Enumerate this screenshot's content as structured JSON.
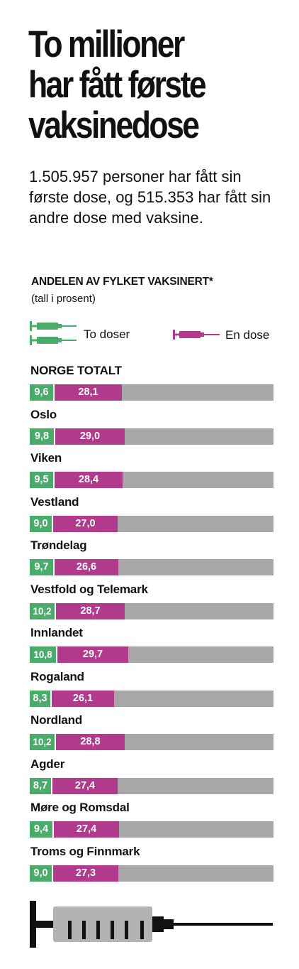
{
  "title_lines": [
    "To millioner",
    "har fått første",
    "vaksinedose"
  ],
  "subtitle": "1.505.957 personer har fått sin første dose, og 515.353 har fått sin andre dose med vaksine.",
  "section_title": "ANDELEN AV FYLKET VAKSINERT*",
  "section_subtitle": "(tall  i prosent)",
  "legend": {
    "two_doses": "To doser",
    "one_dose": "En dose"
  },
  "colors": {
    "two_doses": "#4aab6a",
    "one_dose": "#b23a8c",
    "remainder": "#a7a7a7"
  },
  "chart_data": {
    "type": "bar",
    "stacked": true,
    "orientation": "horizontal",
    "xlim": [
      0,
      100
    ],
    "categories": [
      "NORGE TOTALT",
      "Oslo",
      "Viken",
      "Vestland",
      "Trøndelag",
      "Vestfold og Telemark",
      "Innlandet",
      "Rogaland",
      "Nordland",
      "Agder",
      "Møre og Romsdal",
      "Troms og Finnmark"
    ],
    "series": [
      {
        "name": "To doser",
        "values": [
          9.6,
          9.8,
          9.5,
          9.0,
          9.7,
          10.2,
          10.8,
          8.3,
          10.2,
          8.7,
          9.4,
          9.0
        ],
        "labels": [
          "9,6",
          "9,8",
          "9,5",
          "9,0",
          "9,7",
          "10,2",
          "10,8",
          "8,3",
          "10,2",
          "8,7",
          "9,4",
          "9,0"
        ]
      },
      {
        "name": "En dose",
        "values": [
          28.1,
          29.0,
          28.4,
          27.0,
          26.6,
          28.7,
          29.7,
          26.1,
          28.8,
          27.4,
          27.4,
          27.3
        ],
        "labels": [
          "28,1",
          "29,0",
          "28,4",
          "27,0",
          "26,6",
          "28,7",
          "29,7",
          "26,1",
          "28,8",
          "27,4",
          "27,4",
          "27,3"
        ]
      }
    ]
  }
}
